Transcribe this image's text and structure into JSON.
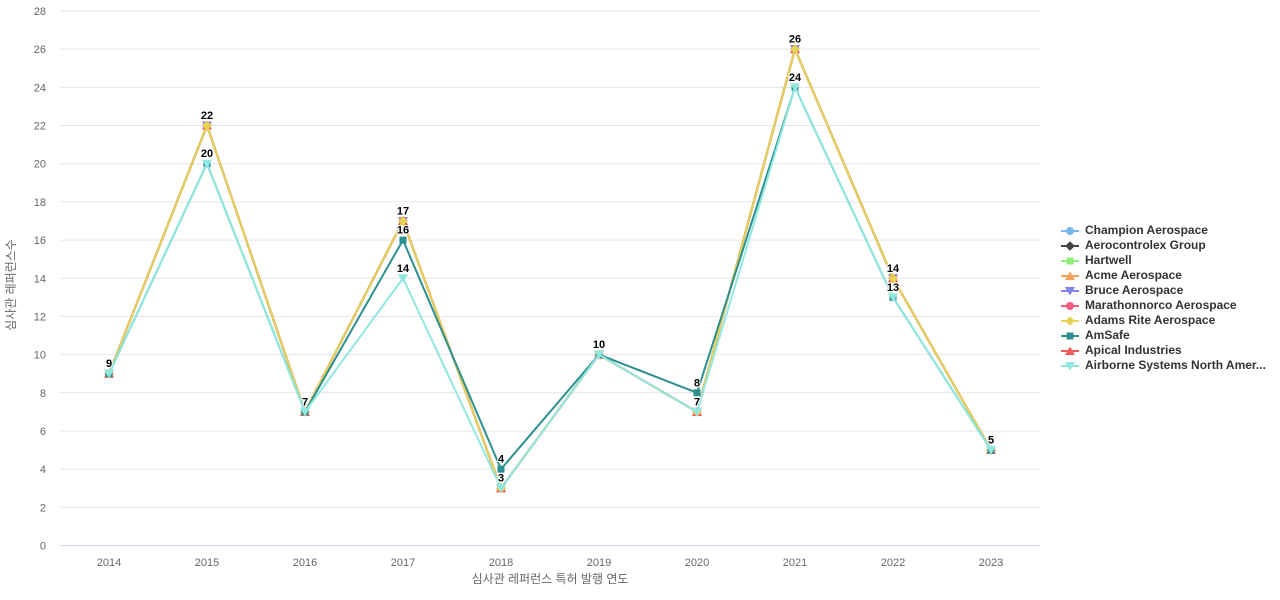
{
  "chart_data": {
    "type": "line",
    "title": "",
    "xlabel": "심사관 레퍼런스 특허 발행 연도",
    "ylabel": "심사관 레퍼런스수",
    "categories": [
      "2014",
      "2015",
      "2016",
      "2017",
      "2018",
      "2019",
      "2020",
      "2021",
      "2022",
      "2023"
    ],
    "ylim": [
      0,
      28
    ],
    "ytick_step": 2,
    "grid": true,
    "legend_position": "right",
    "series": [
      {
        "name": "Champion Aerospace",
        "color": "#7cb5ec",
        "symbol": "circle",
        "values": [
          9,
          22,
          7,
          17,
          3,
          10,
          7,
          26,
          14,
          5
        ]
      },
      {
        "name": "Aerocontrolex Group",
        "color": "#434348",
        "symbol": "diamond",
        "values": [
          9,
          22,
          7,
          17,
          3,
          10,
          7,
          26,
          14,
          5
        ]
      },
      {
        "name": "Hartwell",
        "color": "#90ed7d",
        "symbol": "square",
        "values": [
          9,
          22,
          7,
          17,
          3,
          10,
          7,
          26,
          14,
          5
        ]
      },
      {
        "name": "Acme Aerospace",
        "color": "#f7a35c",
        "symbol": "triangle",
        "values": [
          9,
          22,
          7,
          17,
          3,
          10,
          7,
          26,
          14,
          5
        ]
      },
      {
        "name": "Bruce Aerospace",
        "color": "#8085e9",
        "symbol": "triangle-down",
        "values": [
          9,
          22,
          7,
          17,
          3,
          10,
          7,
          26,
          14,
          5
        ]
      },
      {
        "name": "Marathonnorco Aerospace",
        "color": "#f15c80",
        "symbol": "circle",
        "values": [
          9,
          22,
          7,
          17,
          3,
          10,
          7,
          26,
          14,
          5
        ]
      },
      {
        "name": "Adams Rite Aerospace",
        "color": "#e4d354",
        "symbol": "diamond",
        "values": [
          9,
          22,
          7,
          17,
          3,
          10,
          7,
          26,
          14,
          5
        ]
      },
      {
        "name": "AmSafe",
        "color": "#2b908f",
        "symbol": "square",
        "values": [
          9,
          20,
          7,
          16,
          4,
          10,
          8,
          24,
          13,
          5
        ]
      },
      {
        "name": "Apical Industries",
        "color": "#f45b5b",
        "symbol": "triangle",
        "values": [
          9,
          22,
          7,
          17,
          3,
          10,
          7,
          26,
          14,
          5
        ]
      },
      {
        "name": "Airborne Systems North Amer...",
        "color": "#91e8e1",
        "symbol": "triangle-down",
        "values": [
          9,
          20,
          7,
          14,
          3,
          10,
          7,
          24,
          13,
          5
        ]
      }
    ],
    "draw_order": [
      0,
      1,
      2,
      3,
      4,
      5,
      8,
      6,
      7,
      9
    ],
    "data_labels_visible": [
      "9",
      "22",
      "20",
      "7",
      "17",
      "16",
      "14",
      "4",
      "3",
      "10",
      "8",
      "7",
      "26",
      "24",
      "14",
      "13",
      "5"
    ],
    "colors": {
      "background": "#ffffff",
      "gridline": "#e6e6e6",
      "x_axis_line": "#ccd6eb",
      "tick_label": "#666666",
      "axis_title": "#666666",
      "data_label": "#000000",
      "legend_text": "#333333"
    }
  }
}
